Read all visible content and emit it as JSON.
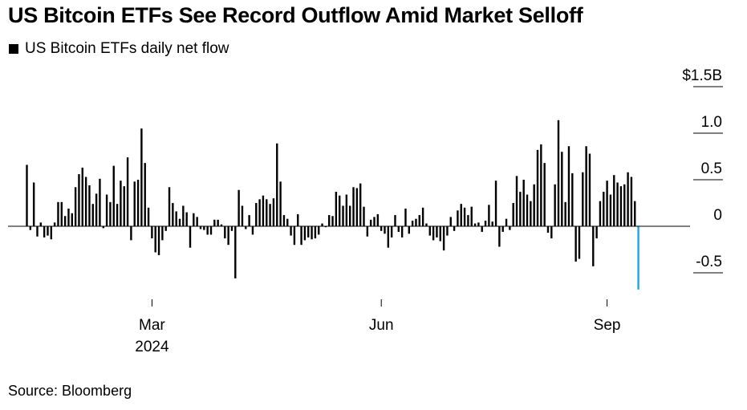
{
  "title": "US Bitcoin ETFs See Record Outflow Amid Market Selloff",
  "source": "Source: Bloomberg",
  "colors": {
    "bar": "#000000",
    "highlight": "#1aa7e8",
    "axis": "#000000"
  },
  "chart_data": {
    "type": "bar",
    "legend": [
      "US Bitcoin ETFs daily net flow"
    ],
    "legend_placement": "top-left",
    "y_tick_labels": [
      "$1.5B",
      "1.0",
      "0.5",
      "0",
      "-0.5"
    ],
    "y_ticks": [
      1.5,
      1.0,
      0.5,
      0,
      -0.5
    ],
    "ylim": [
      -0.75,
      1.6
    ],
    "x_tick_labels": [
      "Mar",
      "Jun",
      "Sep"
    ],
    "x_tick_sublabels": [
      "2024",
      "",
      ""
    ],
    "x_tick_positions": [
      "2024-03-01",
      "2024-06-01",
      "2024-09-01"
    ],
    "grid": false,
    "series": [
      {
        "name": "US Bitcoin ETFs daily net flow",
        "start": "2024-01-11",
        "frequency": "trading days",
        "values": [
          0.66,
          -0.04,
          0.47,
          -0.11,
          0.04,
          -0.12,
          -0.1,
          -0.14,
          0.04,
          0.26,
          0.26,
          0.11,
          0.19,
          0.14,
          0.42,
          0.56,
          0.63,
          0.53,
          0.44,
          0.24,
          0.35,
          0.51,
          -0.02,
          0.34,
          0.26,
          0.65,
          0.24,
          0.49,
          0.43,
          0.74,
          -0.15,
          0.48,
          0.5,
          1.05,
          0.68,
          0.2,
          -0.13,
          -0.28,
          -0.31,
          -0.15,
          -0.05,
          0.42,
          0.25,
          0.16,
          0.08,
          0.22,
          0.15,
          -0.23,
          0.14,
          0.1,
          -0.03,
          -0.04,
          -0.09,
          -0.09,
          0.07,
          0.07,
          0.02,
          -0.13,
          -0.2,
          -0.05,
          -0.56,
          0.39,
          0.22,
          -0.03,
          0.12,
          -0.09,
          0.25,
          0.29,
          0.33,
          0.29,
          0.24,
          0.3,
          0.89,
          0.48,
          0.12,
          0.08,
          -0.1,
          -0.2,
          0.13,
          -0.2,
          -0.15,
          -0.12,
          -0.14,
          -0.13,
          -0.09,
          0.03,
          -0.01,
          0.12,
          0.11,
          0.37,
          0.33,
          0.22,
          0.34,
          0.22,
          0.42,
          0.41,
          0.46,
          0.21,
          -0.11,
          0.07,
          0.1,
          0.13,
          -0.05,
          -0.08,
          -0.23,
          -0.12,
          0.12,
          -0.06,
          -0.12,
          0.19,
          -0.08,
          0.06,
          0.08,
          0.12,
          0.2,
          0.03,
          -0.1,
          -0.15,
          -0.12,
          -0.16,
          -0.26,
          -0.1,
          0.1,
          -0.05,
          0.17,
          0.24,
          0.2,
          0.12,
          0.21,
          0.03,
          0.04,
          -0.06,
          0.06,
          0.23,
          0.05,
          0.49,
          -0.22,
          -0.06,
          0.08,
          -0.04,
          0.25,
          0.54,
          0.37,
          0.5,
          0.34,
          0.27,
          0.45,
          0.82,
          0.88,
          0.68,
          -0.07,
          -0.13,
          0.45,
          1.14,
          0.8,
          0.26,
          0.86,
          0.57,
          -0.38,
          -0.35,
          0.58,
          0.86,
          0.78,
          -0.43,
          -0.13,
          0.27,
          0.37,
          0.49,
          0.34,
          0.55,
          0.47,
          0.43,
          0.45,
          0.58,
          0.53,
          0.27,
          -0.68
        ]
      }
    ],
    "highlight_last": true
  }
}
